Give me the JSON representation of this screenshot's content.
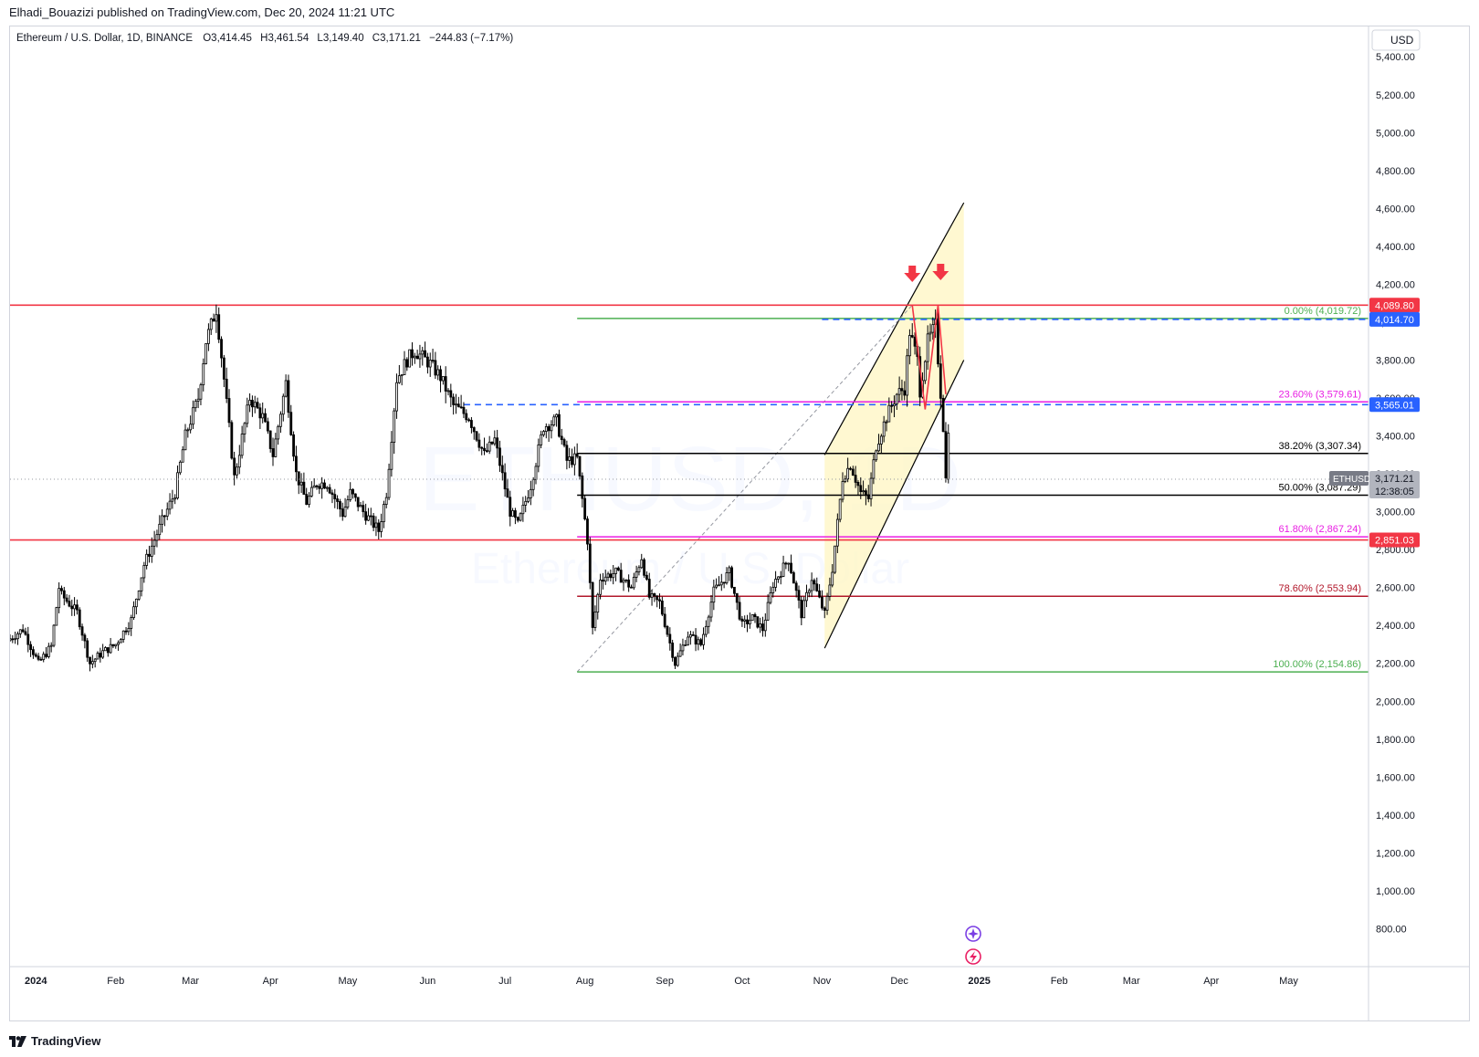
{
  "header": {
    "published": "Elhadi_Bouazizi published on TradingView.com, Dec 20, 2024 11:21 UTC"
  },
  "legend": {
    "symbol": "Ethereum / U.S. Dollar, 1D, BINANCE",
    "o_label": "O",
    "o": "3,414.45",
    "h_label": "H",
    "h": "3,461.54",
    "l_label": "L",
    "l": "3,149.40",
    "c_label": "C",
    "c": "3,171.21",
    "change": "−244.83 (−7.17%)"
  },
  "watermark": {
    "line1": "ETHUSD, 1D",
    "line2": "Ethereum / U.S. Dollar"
  },
  "footer": {
    "brand": "TradingView"
  },
  "colors": {
    "bull": "#ffffff",
    "bear": "#000000",
    "wick": "#000000",
    "resistance": "#f23645",
    "fib_green": "#4caf50",
    "fib_magenta": "#e91ee3",
    "fib_dark_red": "#b2182b",
    "fib_black": "#000000",
    "blue_dash": "#2962ff",
    "channel_fill": "#fff5c2",
    "arrow": "#f23645",
    "axis_text": "#131722"
  },
  "chart_data": {
    "type": "candlestick",
    "symbol": "ETHUSD",
    "timeframe": "1D",
    "exchange": "BINANCE",
    "currency": "USD",
    "y_unit_label": "USD",
    "ylim": [
      600,
      5560
    ],
    "y_ticks": [
      800,
      1000,
      1200,
      1400,
      1600,
      1800,
      2000,
      2200,
      2400,
      2600,
      2800,
      3000,
      3200,
      3400,
      3600,
      3800,
      4000,
      4200,
      4400,
      4600,
      4800,
      5000,
      5200,
      5400
    ],
    "x_range": [
      "2023-12-22",
      "2025-06-01"
    ],
    "x_ticks": [
      {
        "date": "2024-01-01",
        "label": "2024"
      },
      {
        "date": "2024-02-01",
        "label": "Feb"
      },
      {
        "date": "2024-03-01",
        "label": "Mar"
      },
      {
        "date": "2024-04-01",
        "label": "Apr"
      },
      {
        "date": "2024-05-01",
        "label": "May"
      },
      {
        "date": "2024-06-01",
        "label": "Jun"
      },
      {
        "date": "2024-07-01",
        "label": "Jul"
      },
      {
        "date": "2024-08-01",
        "label": "Aug"
      },
      {
        "date": "2024-09-01",
        "label": "Sep"
      },
      {
        "date": "2024-10-01",
        "label": "Oct"
      },
      {
        "date": "2024-11-01",
        "label": "Nov"
      },
      {
        "date": "2024-12-01",
        "label": "Dec"
      },
      {
        "date": "2025-01-01",
        "label": "2025"
      },
      {
        "date": "2025-02-01",
        "label": "Feb"
      },
      {
        "date": "2025-03-01",
        "label": "Mar"
      },
      {
        "date": "2025-04-01",
        "label": "Apr"
      },
      {
        "date": "2025-05-01",
        "label": "May"
      }
    ],
    "price_path": [
      [
        "2023-12-22",
        2320
      ],
      [
        "2023-12-28",
        2380
      ],
      [
        "2024-01-03",
        2200
      ],
      [
        "2024-01-08",
        2290
      ],
      [
        "2024-01-11",
        2600
      ],
      [
        "2024-01-12",
        2560
      ],
      [
        "2024-01-18",
        2470
      ],
      [
        "2024-01-23",
        2200
      ],
      [
        "2024-01-28",
        2260
      ],
      [
        "2024-02-02",
        2300
      ],
      [
        "2024-02-08",
        2430
      ],
      [
        "2024-02-13",
        2720
      ],
      [
        "2024-02-20",
        2950
      ],
      [
        "2024-02-25",
        3100
      ],
      [
        "2024-02-29",
        3400
      ],
      [
        "2024-03-05",
        3600
      ],
      [
        "2024-03-08",
        3900
      ],
      [
        "2024-03-12",
        4070
      ],
      [
        "2024-03-15",
        3700
      ],
      [
        "2024-03-19",
        3180
      ],
      [
        "2024-03-25",
        3600
      ],
      [
        "2024-03-30",
        3500
      ],
      [
        "2024-04-03",
        3300
      ],
      [
        "2024-04-08",
        3680
      ],
      [
        "2024-04-12",
        3200
      ],
      [
        "2024-04-16",
        3050
      ],
      [
        "2024-04-20",
        3150
      ],
      [
        "2024-04-24",
        3150
      ],
      [
        "2024-04-30",
        2990
      ],
      [
        "2024-05-03",
        3100
      ],
      [
        "2024-05-08",
        3000
      ],
      [
        "2024-05-14",
        2900
      ],
      [
        "2024-05-17",
        3100
      ],
      [
        "2024-05-21",
        3700
      ],
      [
        "2024-05-25",
        3800
      ],
      [
        "2024-05-28",
        3850
      ],
      [
        "2024-06-03",
        3780
      ],
      [
        "2024-06-07",
        3710
      ],
      [
        "2024-06-12",
        3560
      ],
      [
        "2024-06-18",
        3500
      ],
      [
        "2024-06-24",
        3300
      ],
      [
        "2024-06-28",
        3380
      ],
      [
        "2024-07-04",
        3000
      ],
      [
        "2024-07-07",
        2930
      ],
      [
        "2024-07-12",
        3140
      ],
      [
        "2024-07-17",
        3450
      ],
      [
        "2024-07-22",
        3480
      ],
      [
        "2024-07-26",
        3270
      ],
      [
        "2024-07-30",
        3280
      ],
      [
        "2024-08-03",
        2850
      ],
      [
        "2024-08-05",
        2380
      ],
      [
        "2024-08-08",
        2650
      ],
      [
        "2024-08-14",
        2680
      ],
      [
        "2024-08-20",
        2600
      ],
      [
        "2024-08-24",
        2760
      ],
      [
        "2024-08-27",
        2550
      ],
      [
        "2024-08-31",
        2520
      ],
      [
        "2024-09-06",
        2200
      ],
      [
        "2024-09-11",
        2350
      ],
      [
        "2024-09-16",
        2300
      ],
      [
        "2024-09-21",
        2580
      ],
      [
        "2024-09-27",
        2680
      ],
      [
        "2024-10-02",
        2400
      ],
      [
        "2024-10-06",
        2440
      ],
      [
        "2024-10-10",
        2380
      ],
      [
        "2024-10-14",
        2620
      ],
      [
        "2024-10-20",
        2750
      ],
      [
        "2024-10-25",
        2460
      ],
      [
        "2024-10-29",
        2650
      ],
      [
        "2024-11-03",
        2460
      ],
      [
        "2024-11-06",
        2700
      ],
      [
        "2024-11-10",
        3180
      ],
      [
        "2024-11-13",
        3250
      ],
      [
        "2024-11-17",
        3100
      ],
      [
        "2024-11-20",
        3070
      ],
      [
        "2024-11-23",
        3350
      ],
      [
        "2024-11-27",
        3500
      ],
      [
        "2024-12-01",
        3620
      ],
      [
        "2024-12-04",
        3650
      ],
      [
        "2024-12-06",
        3950
      ],
      [
        "2024-12-09",
        3800
      ],
      [
        "2024-12-10",
        3640
      ],
      [
        "2024-12-13",
        3900
      ],
      [
        "2024-12-16",
        3980
      ],
      [
        "2024-12-19",
        3450
      ],
      [
        "2024-12-20",
        3171
      ]
    ],
    "last_candle": {
      "date": "2024-12-20",
      "o": 3414.45,
      "h": 3461.54,
      "l": 3149.4,
      "c": 3171.21
    },
    "horizontal_levels": [
      {
        "price": 4089.8,
        "color": "resistance",
        "start": "2023-12-22",
        "badge": "4,089.80"
      },
      {
        "price": 2851.03,
        "color": "resistance",
        "start": "2023-12-22",
        "badge": "2,851.03"
      },
      {
        "price": 4014.7,
        "color": "blue_dash",
        "dashed": true,
        "start": "2024-11-01",
        "badge": "4,014.70"
      },
      {
        "price": 3565.01,
        "color": "blue_dash",
        "dashed": true,
        "start": "2024-06-15",
        "badge": "3,565.01"
      }
    ],
    "fibonacci": {
      "start": "2024-07-29",
      "levels": [
        {
          "ratio": "0.00%",
          "price": "4,019.72",
          "value": 4019.72,
          "color": "fib_green"
        },
        {
          "ratio": "23.60%",
          "price": "3,579.61",
          "value": 3579.61,
          "color": "fib_magenta"
        },
        {
          "ratio": "38.20%",
          "price": "3,307.34",
          "value": 3307.34,
          "color": "fib_black"
        },
        {
          "ratio": "50.00%",
          "price": "3,087.29",
          "value": 3087.29,
          "color": "fib_black"
        },
        {
          "ratio": "61.80%",
          "price": "2,867.24",
          "value": 2867.24,
          "color": "fib_magenta"
        },
        {
          "ratio": "78.60%",
          "price": "2,553.94",
          "value": 2553.94,
          "color": "fib_dark_red"
        },
        {
          "ratio": "100.00%",
          "price": "2,154.86",
          "value": 2154.86,
          "color": "fib_green"
        }
      ],
      "trend_line": [
        [
          "2024-07-29",
          2155
        ],
        [
          "2024-12-06",
          4090
        ]
      ]
    },
    "channel": {
      "upper": [
        [
          "2024-11-02",
          3300
        ],
        [
          "2024-12-26",
          4630
        ]
      ],
      "lower": [
        [
          "2024-11-02",
          2280
        ],
        [
          "2024-12-26",
          3800
        ]
      ],
      "fill": [
        [
          "2024-11-02",
          2280
        ],
        [
          "2024-11-02",
          3300
        ],
        [
          "2024-12-26",
          4630
        ],
        [
          "2024-12-26",
          3800
        ]
      ]
    },
    "double_top": [
      [
        "2024-12-06",
        4090
      ],
      [
        "2024-12-11",
        3540
      ],
      [
        "2024-12-16",
        4090
      ],
      [
        "2024-12-19",
        3620
      ]
    ],
    "arrows": [
      {
        "date": "2024-12-06",
        "price": 4250
      },
      {
        "date": "2024-12-17",
        "price": 4260
      }
    ],
    "price_badge": {
      "symbol": "ETHUSD",
      "price": "3,171.21",
      "countdown": "12:38:05"
    }
  }
}
